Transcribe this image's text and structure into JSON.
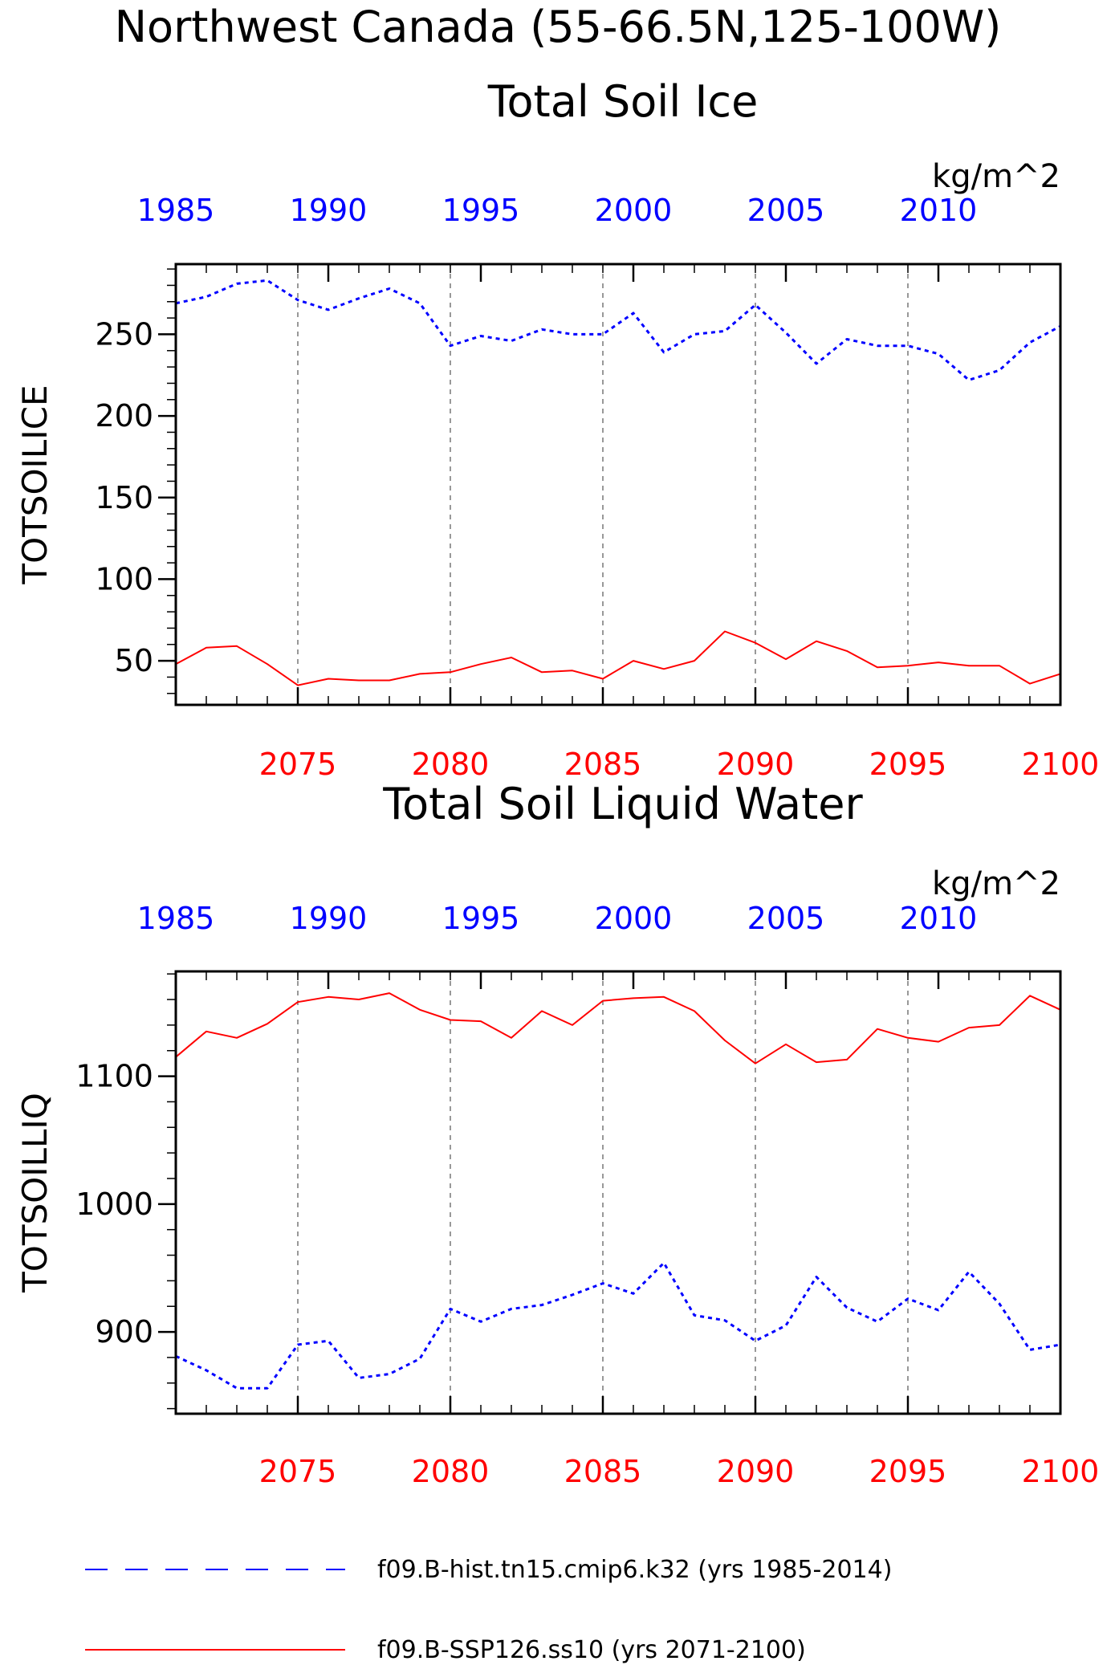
{
  "figure": {
    "title_line1": "Northwest Canada (55-66.5N,125-100W)",
    "legend": [
      {
        "label": "f09.B-hist.tn15.cmip6.k32 (yrs 1985-2014)",
        "color": "#0000ff",
        "style": "dashed"
      },
      {
        "label": "f09.B-SSP126.ss10 (yrs 2071-2100)",
        "color": "#ff0000",
        "style": "solid"
      }
    ]
  },
  "chart_data": [
    {
      "type": "line",
      "title": "Total Soil Ice",
      "units": "kg/m^2",
      "ylabel": "TOTSOILICE",
      "ylim": [
        23,
        293
      ],
      "yticks": [
        50,
        100,
        150,
        200,
        250
      ],
      "ytick_labels": [
        "50",
        "100",
        "150",
        "200",
        "250"
      ],
      "y_minor_step": 10,
      "grid": "vertical dashed at major x ticks",
      "x_bottom": {
        "range": [
          2071,
          2100
        ],
        "ticks": [
          2075,
          2080,
          2085,
          2090,
          2095,
          2100
        ],
        "labels": [
          "2075",
          "2080",
          "2085",
          "2090",
          "2095",
          "2100"
        ],
        "color": "#ff0000"
      },
      "x_top": {
        "range": [
          1985,
          2014
        ],
        "ticks": [
          1985,
          1990,
          1995,
          2000,
          2005,
          2010
        ],
        "labels": [
          "1985",
          "1990",
          "1995",
          "2000",
          "2005",
          "2010"
        ],
        "color": "#0000ff"
      },
      "series": [
        {
          "axis": "top",
          "color": "#0000ff",
          "style": "dashed",
          "x": [
            1985,
            1986,
            1987,
            1988,
            1989,
            1990,
            1991,
            1992,
            1993,
            1994,
            1995,
            1996,
            1997,
            1998,
            1999,
            2000,
            2001,
            2002,
            2003,
            2004,
            2005,
            2006,
            2007,
            2008,
            2009,
            2010,
            2011,
            2012,
            2013,
            2014
          ],
          "values": [
            269,
            273,
            281,
            283,
            271,
            265,
            272,
            278,
            269,
            243,
            249,
            246,
            253,
            250,
            250,
            263,
            239,
            250,
            252,
            268,
            251,
            232,
            247,
            243,
            243,
            238,
            222,
            228,
            245,
            255
          ]
        },
        {
          "axis": "bottom",
          "color": "#ff0000",
          "style": "solid",
          "x": [
            2071,
            2072,
            2073,
            2074,
            2075,
            2076,
            2077,
            2078,
            2079,
            2080,
            2081,
            2082,
            2083,
            2084,
            2085,
            2086,
            2087,
            2088,
            2089,
            2090,
            2091,
            2092,
            2093,
            2094,
            2095,
            2096,
            2097,
            2098,
            2099,
            2100
          ],
          "values": [
            48,
            58,
            59,
            48,
            35,
            39,
            38,
            38,
            42,
            43,
            48,
            52,
            43,
            44,
            39,
            50,
            45,
            50,
            68,
            61,
            51,
            62,
            56,
            46,
            47,
            49,
            47,
            47,
            36,
            42
          ]
        }
      ]
    },
    {
      "type": "line",
      "title": "Total Soil Liquid Water",
      "units": "kg/m^2",
      "ylabel": "TOTSOILLIQ",
      "ylim": [
        836,
        1182
      ],
      "yticks": [
        900,
        1000,
        1100
      ],
      "ytick_labels": [
        "900",
        "1000",
        "1100"
      ],
      "y_minor_step": 20,
      "grid": "vertical dashed at major x ticks",
      "x_bottom": {
        "range": [
          2071,
          2100
        ],
        "ticks": [
          2075,
          2080,
          2085,
          2090,
          2095,
          2100
        ],
        "labels": [
          "2075",
          "2080",
          "2085",
          "2090",
          "2095",
          "2100"
        ],
        "color": "#ff0000"
      },
      "x_top": {
        "range": [
          1985,
          2014
        ],
        "ticks": [
          1985,
          1990,
          1995,
          2000,
          2005,
          2010
        ],
        "labels": [
          "1985",
          "1990",
          "1995",
          "2000",
          "2005",
          "2010"
        ],
        "color": "#0000ff"
      },
      "series": [
        {
          "axis": "top",
          "color": "#0000ff",
          "style": "dashed",
          "x": [
            1985,
            1986,
            1987,
            1988,
            1989,
            1990,
            1991,
            1992,
            1993,
            1994,
            1995,
            1996,
            1997,
            1998,
            1999,
            2000,
            2001,
            2002,
            2003,
            2004,
            2005,
            2006,
            2007,
            2008,
            2009,
            2010,
            2011,
            2012,
            2013,
            2014
          ],
          "values": [
            881,
            870,
            856,
            856,
            890,
            893,
            864,
            867,
            879,
            918,
            908,
            918,
            921,
            929,
            938,
            930,
            954,
            913,
            909,
            893,
            905,
            943,
            919,
            908,
            926,
            917,
            947,
            922,
            886,
            890
          ]
        },
        {
          "axis": "bottom",
          "color": "#ff0000",
          "style": "solid",
          "x": [
            2071,
            2072,
            2073,
            2074,
            2075,
            2076,
            2077,
            2078,
            2079,
            2080,
            2081,
            2082,
            2083,
            2084,
            2085,
            2086,
            2087,
            2088,
            2089,
            2090,
            2091,
            2092,
            2093,
            2094,
            2095,
            2096,
            2097,
            2098,
            2099,
            2100
          ],
          "values": [
            1115,
            1135,
            1130,
            1141,
            1158,
            1162,
            1160,
            1165,
            1152,
            1144,
            1143,
            1130,
            1151,
            1140,
            1159,
            1161,
            1162,
            1151,
            1128,
            1110,
            1125,
            1111,
            1113,
            1137,
            1130,
            1127,
            1138,
            1140,
            1163,
            1152
          ]
        }
      ]
    }
  ]
}
